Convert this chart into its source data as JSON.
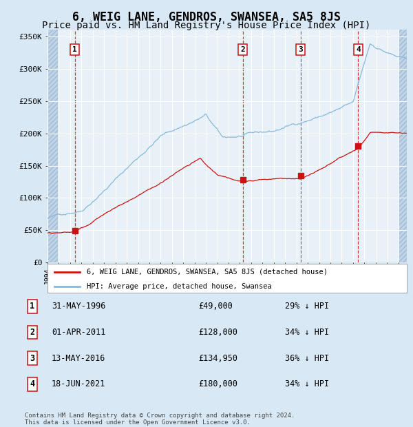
{
  "title": "6, WEIG LANE, GENDROS, SWANSEA, SA5 8JS",
  "subtitle": "Price paid vs. HM Land Registry's House Price Index (HPI)",
  "footer": "Contains HM Land Registry data © Crown copyright and database right 2024.\nThis data is licensed under the Open Government Licence v3.0.",
  "legend_house": "6, WEIG LANE, GENDROS, SWANSEA, SA5 8JS (detached house)",
  "legend_hpi": "HPI: Average price, detached house, Swansea",
  "sales": [
    {
      "num": 1,
      "date_str": "31-MAY-1996",
      "price": "£49,000",
      "pct": "29% ↓ HPI",
      "year": 1996.42,
      "vline_color": "#cc2222",
      "vline_style": "--"
    },
    {
      "num": 2,
      "date_str": "01-APR-2011",
      "price": "£128,000",
      "pct": "34% ↓ HPI",
      "year": 2011.25,
      "vline_color": "#cc2222",
      "vline_style": "--"
    },
    {
      "num": 3,
      "date_str": "13-MAY-2016",
      "price": "£134,950",
      "pct": "36% ↓ HPI",
      "year": 2016.37,
      "vline_color": "#666666",
      "vline_style": "--"
    },
    {
      "num": 4,
      "date_str": "18-JUN-2021",
      "price": "£180,000",
      "pct": "34% ↓ HPI",
      "year": 2021.46,
      "vline_color": "#cc2222",
      "vline_style": "--"
    }
  ],
  "sale_prices": [
    49000,
    128000,
    134950,
    180000
  ],
  "ylim": [
    0,
    360000
  ],
  "xlim_start": 1994.0,
  "xlim_end": 2025.75,
  "bg_color": "#d8e8f4",
  "plot_bg": "#e8f1f8",
  "hatch_color": "#c0d4e8",
  "grid_color": "#ffffff",
  "hpi_color": "#88b8dc",
  "house_color": "#cc1111",
  "marker_color": "#cc1111",
  "title_fontsize": 12,
  "subtitle_fontsize": 10
}
